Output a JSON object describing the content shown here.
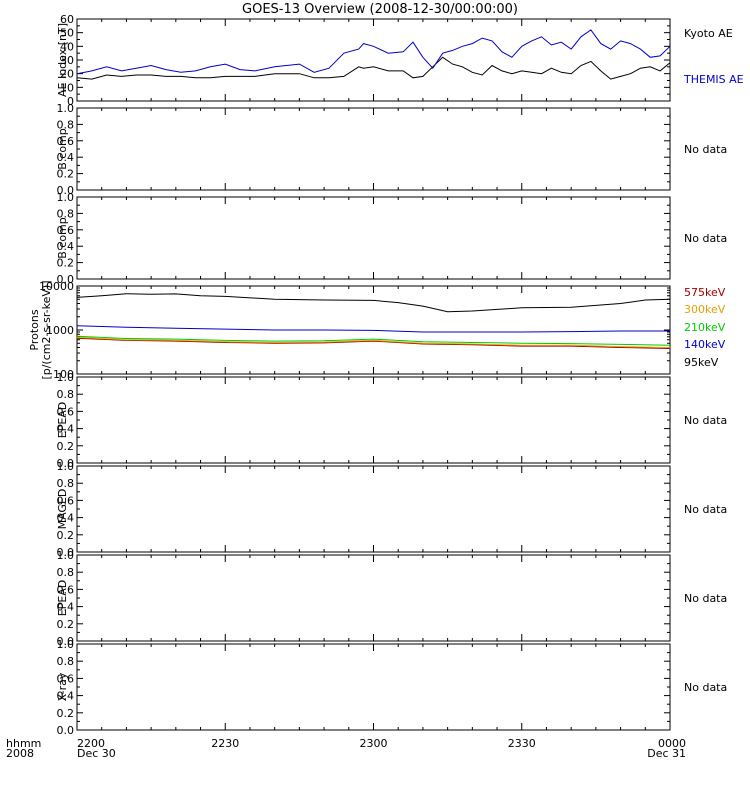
{
  "title": "GOES-13 Overview (2008-12-30/00:00:00)",
  "x_axis": {
    "row1_label": "hhmm",
    "row2_label": "2008",
    "ticks": [
      {
        "time": "2200",
        "date": "Dec 30",
        "minutes": 0
      },
      {
        "time": "2230",
        "date": "",
        "minutes": 30
      },
      {
        "time": "2300",
        "date": "",
        "minutes": 60
      },
      {
        "time": "2330",
        "date": "",
        "minutes": 90
      },
      {
        "time": "0000",
        "date": "Dec 31",
        "minutes": 120
      }
    ]
  },
  "colors": {
    "kyoto": "#000000",
    "themis": "#0000cc",
    "p575": "#a00000",
    "p300": "#e8a000",
    "p210": "#00cc00",
    "p140": "#0000cc",
    "p95": "#000000"
  },
  "chart_data": [
    {
      "type": "line",
      "ylabel": "AE Index [nT]",
      "ylim": [
        0,
        60
      ],
      "yticks": [
        "0",
        "10",
        "20",
        "30",
        "40",
        "50",
        "60"
      ],
      "x_units": "minutes after 2200 UT",
      "legend": [
        "Kyoto AE",
        "THEMIS AE"
      ],
      "series": [
        {
          "name": "Kyoto AE",
          "color_key": "kyoto",
          "x": [
            0,
            3,
            6,
            9,
            12,
            15,
            18,
            21,
            24,
            27,
            30,
            33,
            36,
            40,
            45,
            48,
            51,
            54,
            57,
            58,
            60,
            63,
            66,
            68,
            70,
            72,
            74,
            76,
            78,
            80,
            82,
            84,
            86,
            88,
            90,
            92,
            94,
            96,
            98,
            100,
            102,
            104,
            106,
            108,
            110,
            112,
            114,
            116,
            118,
            120
          ],
          "y": [
            17,
            16,
            19,
            18,
            19,
            19,
            18,
            18,
            17,
            17,
            18,
            18,
            18,
            20,
            20,
            17,
            17,
            18,
            25,
            24,
            25,
            22,
            22,
            17,
            18,
            25,
            32,
            27,
            25,
            21,
            19,
            26,
            22,
            20,
            22,
            21,
            20,
            24,
            21,
            20,
            26,
            29,
            22,
            16,
            18,
            20,
            24,
            25,
            22,
            28
          ]
        },
        {
          "name": "THEMIS AE",
          "color_key": "themis",
          "x": [
            0,
            3,
            6,
            9,
            12,
            15,
            18,
            21,
            24,
            27,
            30,
            33,
            36,
            40,
            45,
            48,
            51,
            54,
            57,
            58,
            60,
            63,
            66,
            68,
            70,
            72,
            74,
            76,
            78,
            80,
            82,
            84,
            86,
            88,
            90,
            92,
            94,
            96,
            98,
            100,
            102,
            104,
            106,
            108,
            110,
            112,
            114,
            116,
            118,
            120
          ],
          "y": [
            20,
            22,
            25,
            22,
            24,
            26,
            23,
            21,
            22,
            25,
            27,
            23,
            22,
            25,
            27,
            21,
            24,
            35,
            38,
            42,
            40,
            35,
            36,
            43,
            32,
            24,
            35,
            37,
            40,
            42,
            46,
            44,
            36,
            32,
            40,
            44,
            47,
            41,
            43,
            38,
            47,
            52,
            42,
            38,
            44,
            42,
            38,
            32,
            33,
            40
          ]
        }
      ]
    },
    {
      "type": "line",
      "ylabel": "B comp",
      "ylim": [
        0,
        1
      ],
      "yticks": [
        "0.0",
        "0.2",
        "0.4",
        "0.6",
        "0.8",
        "1.0"
      ],
      "series": [],
      "note": "No data"
    },
    {
      "type": "line",
      "ylabel": "B comp",
      "ylim": [
        0,
        1
      ],
      "yticks": [
        "0.0",
        "0.2",
        "0.4",
        "0.6",
        "0.8",
        "1.0"
      ],
      "series": [],
      "note": "No data"
    },
    {
      "type": "line",
      "ylabel_line1": "Protons",
      "ylabel_line2": "[p/(cm2-s-sr-keV)]",
      "ylim": [
        100,
        10000
      ],
      "log": true,
      "yticks": [
        "100",
        "1000",
        "10000"
      ],
      "x_units": "minutes after 2200 UT",
      "legend": [
        "575keV",
        "300keV",
        "210keV",
        "140keV",
        "95keV"
      ],
      "series": [
        {
          "name": "575keV",
          "color_key": "p575",
          "x": [
            0,
            10,
            20,
            30,
            40,
            50,
            60,
            70,
            80,
            90,
            100,
            110,
            120
          ],
          "y": [
            650,
            580,
            560,
            520,
            500,
            510,
            560,
            480,
            460,
            430,
            430,
            400,
            380
          ]
        },
        {
          "name": "300keV",
          "color_key": "p300",
          "x": [
            0,
            10,
            20,
            30,
            40,
            50,
            60,
            70,
            80,
            90,
            100,
            110,
            120
          ],
          "y": [
            680,
            600,
            580,
            540,
            520,
            530,
            580,
            500,
            480,
            450,
            450,
            420,
            400
          ]
        },
        {
          "name": "210keV",
          "color_key": "p210",
          "x": [
            0,
            10,
            20,
            30,
            40,
            50,
            60,
            70,
            80,
            90,
            100,
            110,
            120
          ],
          "y": [
            720,
            640,
            620,
            580,
            560,
            570,
            620,
            540,
            520,
            500,
            490,
            470,
            450
          ]
        },
        {
          "name": "140keV",
          "color_key": "p140",
          "x": [
            0,
            10,
            20,
            30,
            40,
            50,
            60,
            70,
            80,
            90,
            100,
            110,
            120
          ],
          "y": [
            1250,
            1150,
            1100,
            1050,
            1000,
            1000,
            980,
            900,
            900,
            900,
            920,
            950,
            950
          ]
        },
        {
          "name": "95keV",
          "color_key": "p95",
          "x": [
            0,
            5,
            10,
            15,
            20,
            25,
            30,
            40,
            50,
            60,
            65,
            70,
            75,
            80,
            90,
            100,
            110,
            115,
            120
          ],
          "y": [
            5500,
            6000,
            6700,
            6500,
            6600,
            6000,
            5800,
            5000,
            4800,
            4700,
            4200,
            3500,
            2600,
            2700,
            3200,
            3300,
            4000,
            4800,
            5000
          ]
        }
      ]
    },
    {
      "type": "line",
      "ylabel": "EPEAD",
      "ylim": [
        0,
        1
      ],
      "yticks": [
        "0.0",
        "0.2",
        "0.4",
        "0.6",
        "0.8",
        "1.0"
      ],
      "series": [],
      "note": "No data"
    },
    {
      "type": "line",
      "ylabel": "MAGED",
      "ylim": [
        0,
        1
      ],
      "yticks": [
        "0.0",
        "0.2",
        "0.4",
        "0.6",
        "0.8",
        "1.0"
      ],
      "series": [],
      "note": "No data"
    },
    {
      "type": "line",
      "ylabel": "EPEAD",
      "ylim": [
        0,
        1
      ],
      "yticks": [
        "0.0",
        "0.2",
        "0.4",
        "0.6",
        "0.8",
        "1.0"
      ],
      "series": [],
      "note": "No data"
    },
    {
      "type": "line",
      "ylabel": "X-ray",
      "ylim": [
        0,
        1
      ],
      "yticks": [
        "0.0",
        "0.2",
        "0.4",
        "0.6",
        "0.8",
        "1.0"
      ],
      "series": [],
      "note": "No data"
    }
  ]
}
